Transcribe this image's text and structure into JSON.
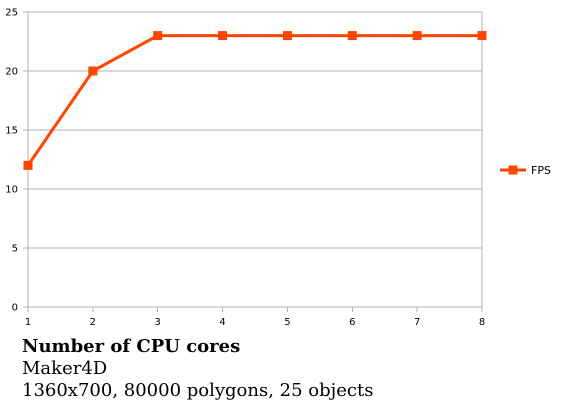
{
  "chart_data": {
    "type": "line",
    "title": "",
    "xlabel": "Number of CPU cores",
    "ylabel": "",
    "x": [
      1,
      2,
      3,
      4,
      5,
      6,
      7,
      8
    ],
    "series": [
      {
        "name": "FPS",
        "values": [
          12,
          20,
          23,
          23,
          23,
          23,
          23,
          23
        ],
        "color": "#ff4500",
        "marker": "square"
      }
    ],
    "xlim": [
      1,
      8
    ],
    "ylim": [
      0,
      25
    ],
    "yticks": [
      0,
      5,
      10,
      15,
      20,
      25
    ],
    "xticks": [
      1,
      2,
      3,
      4,
      5,
      6,
      7,
      8
    ],
    "grid": "horizontal",
    "legend_position": "right"
  },
  "caption": {
    "title": "Number of CPU cores",
    "line1": "Maker4D",
    "line2": "1360x700, 80000 polygons, 25 objects"
  },
  "colors": {
    "series": "#ff4500",
    "grid": "#b3b3b3",
    "axis": "#b3b3b3"
  }
}
